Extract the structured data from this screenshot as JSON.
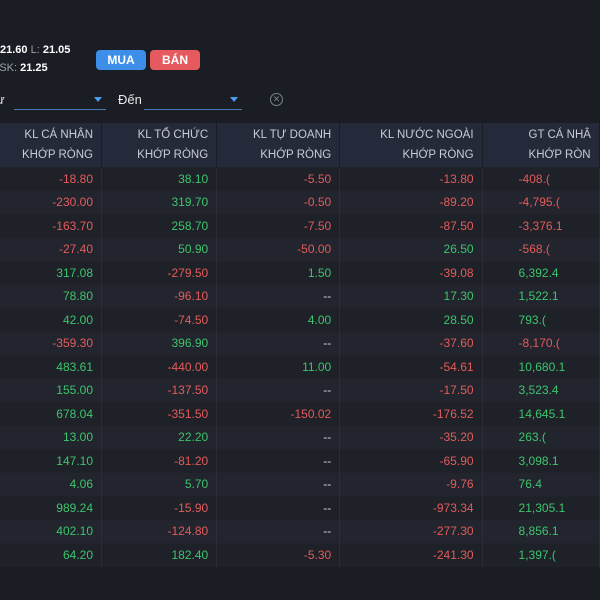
{
  "ticker": {
    "price_value": "21.60",
    "low_label": "L:",
    "low_value": "21.05",
    "ask_label": "ASK:",
    "ask_value": "21.25"
  },
  "actions": {
    "buy_label": "MUA",
    "sell_label": "BÁN"
  },
  "filters": {
    "from_label": "ừ",
    "to_label": "Đến"
  },
  "table": {
    "headers": [
      {
        "line1": "KL CÁ NHÂN",
        "line2": "KHỚP RÒNG"
      },
      {
        "line1": "KL TỔ CHỨC",
        "line2": "KHỚP RÒNG"
      },
      {
        "line1": "KL TỰ DOANH",
        "line2": "KHỚP RÒNG"
      },
      {
        "line1": "KL NƯỚC NGOÀI",
        "line2": "KHỚP RÒNG"
      },
      {
        "line1": "GT CÁ NHÂ",
        "line2": "KHỚP RÒN"
      }
    ],
    "rows": [
      [
        "-18.80",
        "38.10",
        "-5.50",
        "-13.80",
        "-408.("
      ],
      [
        "-230.00",
        "319.70",
        "-0.50",
        "-89.20",
        "-4,795.("
      ],
      [
        "-163.70",
        "258.70",
        "-7.50",
        "-87.50",
        "-3,376.1"
      ],
      [
        "-27.40",
        "50.90",
        "-50.00",
        "26.50",
        "-568.("
      ],
      [
        "317.08",
        "-279.50",
        "1.50",
        "-39.08",
        "6,392.4"
      ],
      [
        "78.80",
        "-96.10",
        "--",
        "17.30",
        "1,522.1"
      ],
      [
        "42.00",
        "-74.50",
        "4.00",
        "28.50",
        "793.("
      ],
      [
        "-359.30",
        "396.90",
        "--",
        "-37.60",
        "-8,170.("
      ],
      [
        "483.61",
        "-440.00",
        "11.00",
        "-54.61",
        "10,680.1"
      ],
      [
        "155.00",
        "-137.50",
        "--",
        "-17.50",
        "3,523.4"
      ],
      [
        "678.04",
        "-351.50",
        "-150.02",
        "-176.52",
        "14,645.1"
      ],
      [
        "13.00",
        "22.20",
        "--",
        "-35.20",
        "263.("
      ],
      [
        "147.10",
        "-81.20",
        "--",
        "-65.90",
        "3,098.1"
      ],
      [
        "4.06",
        "5.70",
        "--",
        "-9.76",
        "76.4"
      ],
      [
        "989.24",
        "-15.90",
        "--",
        "-973.34",
        "21,305.1"
      ],
      [
        "402.10",
        "-124.80",
        "--",
        "-277.30",
        "8,856.1"
      ],
      [
        "64.20",
        "182.40",
        "-5.30",
        "-241.30",
        "1,397.("
      ]
    ]
  },
  "colors": {
    "positive": "#3ec46d",
    "negative": "#e45b5b",
    "buy": "#3d8ee8",
    "sell": "#e65a5f"
  }
}
